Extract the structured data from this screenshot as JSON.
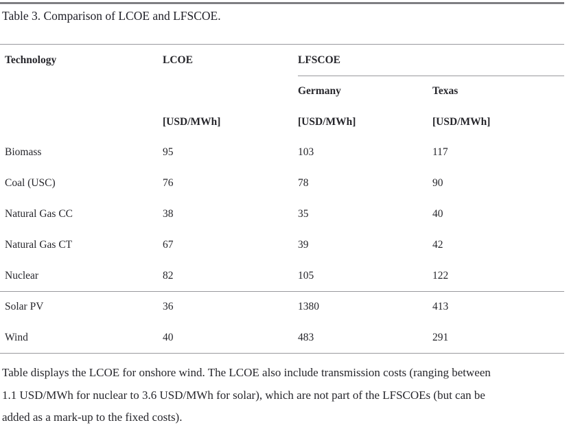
{
  "caption": "Table 3. Comparison of LCOE and LFSCOE.",
  "table": {
    "headers": {
      "technology": "Technology",
      "lcoe": "LCOE",
      "lfscoe_group": "LFSCOE",
      "germany": "Germany",
      "texas": "Texas"
    },
    "units": {
      "lcoe": "[USD/MWh]",
      "germany": "[USD/MWh]",
      "texas": "[USD/MWh]"
    },
    "rows": [
      {
        "technology": "Biomass",
        "lcoe": "95",
        "germany": "103",
        "texas": "117"
      },
      {
        "technology": "Coal (USC)",
        "lcoe": "76",
        "germany": "78",
        "texas": "90"
      },
      {
        "technology": "Natural Gas CC",
        "lcoe": "38",
        "germany": "35",
        "texas": "40"
      },
      {
        "technology": "Natural Gas CT",
        "lcoe": "67",
        "germany": "39",
        "texas": "42"
      },
      {
        "technology": "Nuclear",
        "lcoe": "82",
        "germany": "105",
        "texas": "122"
      },
      {
        "technology": "Solar PV",
        "lcoe": "36",
        "germany": "1380",
        "texas": "413"
      },
      {
        "technology": "Wind",
        "lcoe": "40",
        "germany": "483",
        "texas": "291"
      }
    ]
  },
  "footnote_lines": [
    "Table displays the LCOE for onshore wind. The LCOE also include transmission costs (ranging between",
    "1.1 USD/MWh for nuclear to 3.6 USD/MWh for solar), which are not part of the LFSCOEs (but can be",
    "added as a mark-up to the fixed costs)."
  ],
  "colors": {
    "text": "#26262b",
    "rule_thick": "#7e7e82",
    "rule_thin": "#98989c",
    "background": "#ffffff"
  }
}
